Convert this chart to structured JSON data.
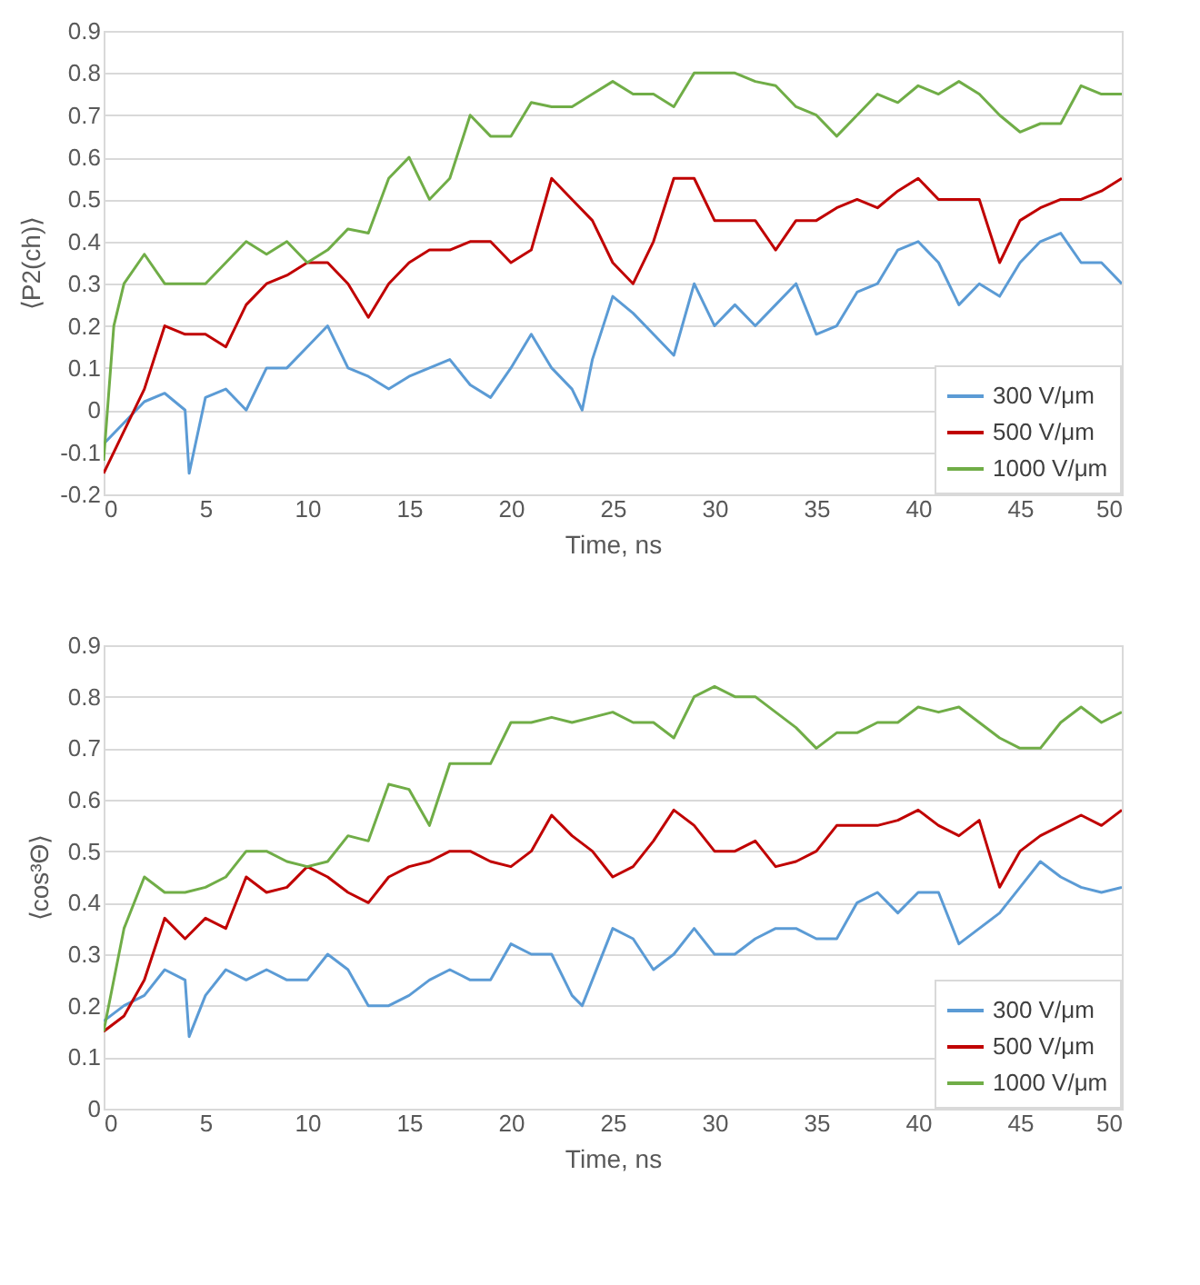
{
  "chart_data": [
    {
      "type": "line",
      "xlabel": "Time, ns",
      "ylabel": "⟨P2(ch)⟩",
      "xlim": [
        0,
        50
      ],
      "xticks": [
        0,
        5,
        10,
        15,
        20,
        25,
        30,
        35,
        40,
        45,
        50
      ],
      "ylim": [
        -0.2,
        0.9
      ],
      "yticks": [
        -0.2,
        -0.1,
        0,
        0.1,
        0.2,
        0.3,
        0.4,
        0.5,
        0.6,
        0.7,
        0.8,
        0.9
      ],
      "grid": "y",
      "legend": "bottom right",
      "line_style": "solid",
      "series": [
        {
          "name": "300 V/μm",
          "color": "#5b9bd5",
          "x": [
            0,
            1,
            2,
            3,
            4,
            4.2,
            5,
            6,
            7,
            8,
            9,
            10,
            11,
            12,
            13,
            14,
            15,
            16,
            17,
            18,
            19,
            20,
            21,
            22,
            23,
            23.5,
            24,
            25,
            26,
            27,
            28,
            29,
            30,
            31,
            32,
            33,
            34,
            35,
            36,
            37,
            38,
            39,
            40,
            41,
            42,
            43,
            44,
            45,
            46,
            47,
            48,
            49,
            50
          ],
          "values": [
            -0.08,
            -0.03,
            0.02,
            0.04,
            0.0,
            -0.15,
            0.03,
            0.05,
            0.0,
            0.1,
            0.1,
            0.15,
            0.2,
            0.1,
            0.08,
            0.05,
            0.08,
            0.1,
            0.12,
            0.06,
            0.03,
            0.1,
            0.18,
            0.1,
            0.05,
            0.0,
            0.12,
            0.27,
            0.23,
            0.18,
            0.13,
            0.3,
            0.2,
            0.25,
            0.2,
            0.25,
            0.3,
            0.18,
            0.2,
            0.28,
            0.3,
            0.38,
            0.4,
            0.35,
            0.25,
            0.3,
            0.27,
            0.35,
            0.4,
            0.42,
            0.35,
            0.35,
            0.3
          ]
        },
        {
          "name": "500 V/μm",
          "color": "#c00000",
          "x": [
            0,
            1,
            2,
            3,
            4,
            5,
            6,
            7,
            8,
            9,
            10,
            11,
            12,
            13,
            14,
            15,
            16,
            17,
            18,
            19,
            20,
            21,
            22,
            23,
            24,
            25,
            26,
            27,
            28,
            29,
            30,
            31,
            32,
            33,
            34,
            35,
            36,
            37,
            38,
            39,
            40,
            41,
            42,
            43,
            44,
            45,
            46,
            47,
            48,
            49,
            50
          ],
          "values": [
            -0.15,
            -0.05,
            0.05,
            0.2,
            0.18,
            0.18,
            0.15,
            0.25,
            0.3,
            0.32,
            0.35,
            0.35,
            0.3,
            0.22,
            0.3,
            0.35,
            0.38,
            0.38,
            0.4,
            0.4,
            0.35,
            0.38,
            0.55,
            0.5,
            0.45,
            0.35,
            0.3,
            0.4,
            0.55,
            0.55,
            0.45,
            0.45,
            0.45,
            0.38,
            0.45,
            0.45,
            0.48,
            0.5,
            0.48,
            0.52,
            0.55,
            0.5,
            0.5,
            0.5,
            0.35,
            0.45,
            0.48,
            0.5,
            0.5,
            0.52,
            0.55
          ]
        },
        {
          "name": "1000 V/μm",
          "color": "#70ad47",
          "x": [
            0,
            0.5,
            1,
            2,
            3,
            4,
            5,
            6,
            7,
            8,
            9,
            10,
            11,
            12,
            13,
            14,
            15,
            16,
            17,
            18,
            19,
            20,
            21,
            22,
            23,
            24,
            25,
            26,
            27,
            28,
            29,
            30,
            31,
            32,
            33,
            34,
            35,
            36,
            37,
            38,
            39,
            40,
            41,
            42,
            43,
            44,
            45,
            46,
            47,
            48,
            49,
            50
          ],
          "values": [
            -0.12,
            0.2,
            0.3,
            0.37,
            0.3,
            0.3,
            0.3,
            0.35,
            0.4,
            0.37,
            0.4,
            0.35,
            0.38,
            0.43,
            0.42,
            0.55,
            0.6,
            0.5,
            0.55,
            0.7,
            0.65,
            0.65,
            0.73,
            0.72,
            0.72,
            0.75,
            0.78,
            0.75,
            0.75,
            0.72,
            0.8,
            0.8,
            0.8,
            0.78,
            0.77,
            0.72,
            0.7,
            0.65,
            0.7,
            0.75,
            0.73,
            0.77,
            0.75,
            0.78,
            0.75,
            0.7,
            0.66,
            0.68,
            0.68,
            0.77,
            0.75,
            0.75
          ]
        }
      ]
    },
    {
      "type": "line",
      "xlabel": "Time, ns",
      "ylabel": "⟨cos³Θ⟩",
      "xlim": [
        0,
        50
      ],
      "xticks": [
        0,
        5,
        10,
        15,
        20,
        25,
        30,
        35,
        40,
        45,
        50
      ],
      "ylim": [
        0,
        0.9
      ],
      "yticks": [
        0,
        0.1,
        0.2,
        0.3,
        0.4,
        0.5,
        0.6,
        0.7,
        0.8,
        0.9
      ],
      "grid": "y",
      "legend": "bottom right",
      "line_style": "solid",
      "series": [
        {
          "name": "300 V/μm",
          "color": "#5b9bd5",
          "x": [
            0,
            1,
            2,
            3,
            4,
            4.2,
            5,
            6,
            7,
            8,
            9,
            10,
            11,
            12,
            13,
            14,
            15,
            16,
            17,
            18,
            19,
            20,
            21,
            22,
            23,
            23.5,
            24,
            25,
            26,
            27,
            28,
            29,
            30,
            31,
            32,
            33,
            34,
            35,
            36,
            37,
            38,
            39,
            40,
            41,
            42,
            43,
            44,
            45,
            46,
            47,
            48,
            49,
            50
          ],
          "values": [
            0.17,
            0.2,
            0.22,
            0.27,
            0.25,
            0.14,
            0.22,
            0.27,
            0.25,
            0.27,
            0.25,
            0.25,
            0.3,
            0.27,
            0.2,
            0.2,
            0.22,
            0.25,
            0.27,
            0.25,
            0.25,
            0.32,
            0.3,
            0.3,
            0.22,
            0.2,
            0.25,
            0.35,
            0.33,
            0.27,
            0.3,
            0.35,
            0.3,
            0.3,
            0.33,
            0.35,
            0.35,
            0.33,
            0.33,
            0.4,
            0.42,
            0.38,
            0.42,
            0.42,
            0.32,
            0.35,
            0.38,
            0.43,
            0.48,
            0.45,
            0.43,
            0.42,
            0.43
          ]
        },
        {
          "name": "500 V/μm",
          "color": "#c00000",
          "x": [
            0,
            1,
            2,
            3,
            4,
            5,
            6,
            7,
            8,
            9,
            10,
            11,
            12,
            13,
            14,
            15,
            16,
            17,
            18,
            19,
            20,
            21,
            22,
            23,
            24,
            25,
            26,
            27,
            28,
            29,
            30,
            31,
            32,
            33,
            34,
            35,
            36,
            37,
            38,
            39,
            40,
            41,
            42,
            43,
            44,
            45,
            46,
            47,
            48,
            49,
            50
          ],
          "values": [
            0.15,
            0.18,
            0.25,
            0.37,
            0.33,
            0.37,
            0.35,
            0.45,
            0.42,
            0.43,
            0.47,
            0.45,
            0.42,
            0.4,
            0.45,
            0.47,
            0.48,
            0.5,
            0.5,
            0.48,
            0.47,
            0.5,
            0.57,
            0.53,
            0.5,
            0.45,
            0.47,
            0.52,
            0.58,
            0.55,
            0.5,
            0.5,
            0.52,
            0.47,
            0.48,
            0.5,
            0.55,
            0.55,
            0.55,
            0.56,
            0.58,
            0.55,
            0.53,
            0.56,
            0.43,
            0.5,
            0.53,
            0.55,
            0.57,
            0.55,
            0.58
          ]
        },
        {
          "name": "1000 V/μm",
          "color": "#70ad47",
          "x": [
            0,
            0.5,
            1,
            2,
            3,
            4,
            5,
            6,
            7,
            8,
            9,
            10,
            11,
            12,
            13,
            14,
            15,
            16,
            17,
            18,
            19,
            20,
            21,
            22,
            23,
            24,
            25,
            26,
            27,
            28,
            29,
            30,
            31,
            32,
            33,
            34,
            35,
            36,
            37,
            38,
            39,
            40,
            41,
            42,
            43,
            44,
            45,
            46,
            47,
            48,
            49,
            50
          ],
          "values": [
            0.15,
            0.25,
            0.35,
            0.45,
            0.42,
            0.42,
            0.43,
            0.45,
            0.5,
            0.5,
            0.48,
            0.47,
            0.48,
            0.53,
            0.52,
            0.63,
            0.62,
            0.55,
            0.67,
            0.67,
            0.67,
            0.75,
            0.75,
            0.76,
            0.75,
            0.76,
            0.77,
            0.75,
            0.75,
            0.72,
            0.8,
            0.82,
            0.8,
            0.8,
            0.77,
            0.74,
            0.7,
            0.73,
            0.73,
            0.75,
            0.75,
            0.78,
            0.77,
            0.78,
            0.75,
            0.72,
            0.7,
            0.7,
            0.75,
            0.78,
            0.75,
            0.77
          ]
        }
      ]
    }
  ]
}
